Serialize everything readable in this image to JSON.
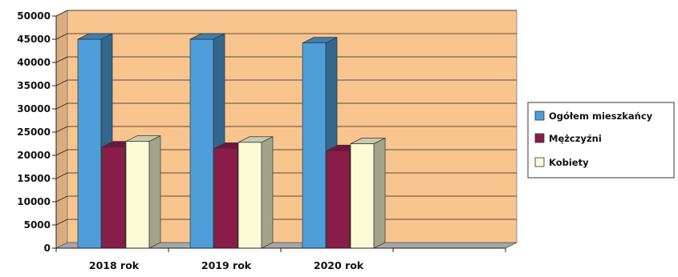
{
  "chart_data": {
    "type": "bar",
    "subtype": "3d-clustered-column",
    "categories": [
      "2018 rok",
      "2019 rok",
      "2020 rok"
    ],
    "series": [
      {
        "name": "Ogółem mieszkańcy",
        "values": [
          45000,
          45000,
          44200
        ],
        "color": "#4f9ed9"
      },
      {
        "name": "Mężczyźni",
        "values": [
          21800,
          21500,
          21000
        ],
        "color": "#8a1c49"
      },
      {
        "name": "Kobiety",
        "values": [
          23000,
          22800,
          22500
        ],
        "color": "#fbfbd6"
      }
    ],
    "yticks": [
      "0",
      "5000",
      "10000",
      "15000",
      "20000",
      "25000",
      "30000",
      "35000",
      "40000",
      "45000",
      "50000"
    ],
    "ylim": [
      0,
      50000
    ],
    "grid": true,
    "legend_position": "right",
    "background_color": "#f9c58f",
    "floor_color": "#a6a6a6",
    "title": "",
    "xlabel": "",
    "ylabel": ""
  }
}
